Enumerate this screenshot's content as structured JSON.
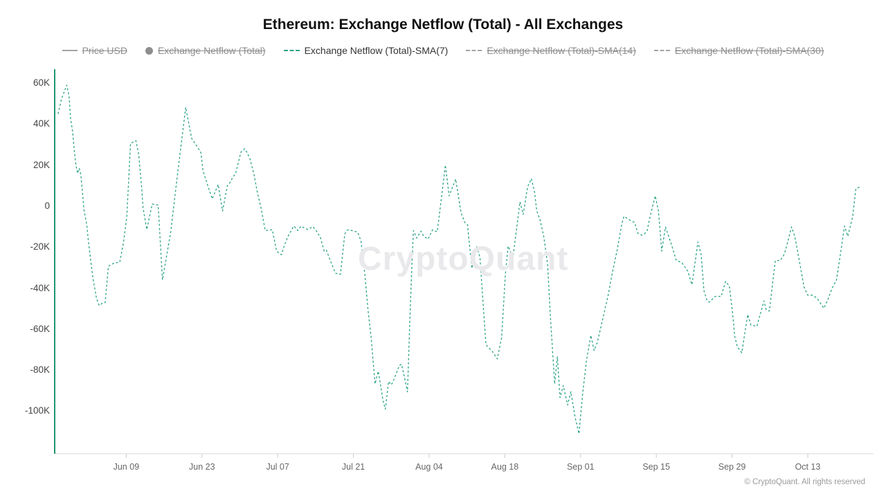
{
  "title": "Ethereum: Exchange Netflow (Total) - All Exchanges",
  "watermark": "CryptoQuant",
  "copyright": "© CryptoQuant. All rights reserved",
  "colors": {
    "accent_green": "#2BA286",
    "axis_green": "#219471",
    "legend_gray": "#8E8E8E",
    "legend_active": "#333333",
    "axis_line_gray": "#DADADA",
    "tick_gray": "#CCCCCC",
    "y_label_color": "#444444",
    "x_label_color": "#666666",
    "watermark_gray": "#E9E9EC",
    "title_color": "#111111"
  },
  "legend": {
    "items": [
      {
        "label": "Price USD",
        "icon": "line",
        "active": false
      },
      {
        "label": "Exchange Netflow (Total)",
        "icon": "circle",
        "active": false
      },
      {
        "label": "Exchange Netflow (Total)-SMA(7)",
        "icon": "dashed-line",
        "active": true
      },
      {
        "label": "Exchange Netflow (Total)-SMA(14)",
        "icon": "dashed-line",
        "active": false
      },
      {
        "label": "Exchange Netflow (Total)-SMA(30)",
        "icon": "dashed-line",
        "active": false
      }
    ]
  },
  "chart_data": {
    "type": "line",
    "title": "Ethereum: Exchange Netflow (Total) - All Exchanges",
    "series_name": "Exchange Netflow (Total)-SMA(7)",
    "line_style": "dashed",
    "unit": "thousand ETH (K)",
    "start_date": "May 27",
    "end_date": "Oct 22",
    "ylim": [
      -115,
      65
    ],
    "grid": false,
    "legend_position": "top",
    "hidden_series": [
      "Price USD",
      "Exchange Netflow (Total)",
      "Exchange Netflow (Total)-SMA(14)",
      "Exchange Netflow (Total)-SMA(30)"
    ],
    "y_ticks": [
      {
        "label": "60K",
        "value": 60
      },
      {
        "label": "40K",
        "value": 40
      },
      {
        "label": "20K",
        "value": 20
      },
      {
        "label": "0",
        "value": 0
      },
      {
        "label": "-20K",
        "value": -20
      },
      {
        "label": "-40K",
        "value": -40
      },
      {
        "label": "-60K",
        "value": -60
      },
      {
        "label": "-80K",
        "value": -80
      },
      {
        "label": "-100K",
        "value": -100
      }
    ],
    "x_ticks": [
      {
        "label": "Jun 09",
        "day": 13
      },
      {
        "label": "Jun 23",
        "day": 27
      },
      {
        "label": "Jul 07",
        "day": 41
      },
      {
        "label": "Jul 21",
        "day": 55
      },
      {
        "label": "Aug 04",
        "day": 69
      },
      {
        "label": "Aug 18",
        "day": 83
      },
      {
        "label": "Sep 01",
        "day": 97
      },
      {
        "label": "Sep 15",
        "day": 111
      },
      {
        "label": "Sep 29",
        "day": 125
      },
      {
        "label": "Oct 13",
        "day": 139
      }
    ],
    "points_day_value": [
      [
        0.4,
        45
      ],
      [
        1,
        52
      ],
      [
        2,
        59
      ],
      [
        2.4,
        54
      ],
      [
        2.7,
        43
      ],
      [
        3.1,
        36
      ],
      [
        3.4,
        27
      ],
      [
        3.7,
        20
      ],
      [
        4,
        16
      ],
      [
        4.3,
        18.5
      ],
      [
        4.6,
        15.5
      ],
      [
        4.9,
        7
      ],
      [
        5.2,
        -2
      ],
      [
        5.7,
        -9
      ],
      [
        6,
        -17
      ],
      [
        6.5,
        -28
      ],
      [
        6.9,
        -36
      ],
      [
        7.5,
        -45
      ],
      [
        8,
        -48.5
      ],
      [
        8.6,
        -47.3
      ],
      [
        9.1,
        -47
      ],
      [
        9.7,
        -29.3
      ],
      [
        10.8,
        -27.7
      ],
      [
        11.8,
        -27.4
      ],
      [
        12.5,
        -17.5
      ],
      [
        13.1,
        -5
      ],
      [
        13.8,
        30.6
      ],
      [
        14.8,
        31.9
      ],
      [
        15.3,
        25.2
      ],
      [
        15.9,
        7.8
      ],
      [
        16.1,
        -0.7
      ],
      [
        16.8,
        -11.4
      ],
      [
        17.8,
        1
      ],
      [
        18.9,
        0.5
      ],
      [
        19.7,
        -36
      ],
      [
        21.2,
        -13
      ],
      [
        22.5,
        16
      ],
      [
        24,
        48.2
      ],
      [
        24.6,
        39.8
      ],
      [
        25.1,
        33
      ],
      [
        26.1,
        29.1
      ],
      [
        26.8,
        26.1
      ],
      [
        27.2,
        17.3
      ],
      [
        27.8,
        12.2
      ],
      [
        28.9,
        3.5
      ],
      [
        30,
        10.6
      ],
      [
        30.8,
        -2.4
      ],
      [
        31.7,
        10
      ],
      [
        32.1,
        11.1
      ],
      [
        32.8,
        14.5
      ],
      [
        33.2,
        15.6
      ],
      [
        34.2,
        26.3
      ],
      [
        34.9,
        28
      ],
      [
        35.3,
        26.3
      ],
      [
        35.9,
        22.9
      ],
      [
        36.6,
        15.6
      ],
      [
        37.2,
        7.2
      ],
      [
        37.9,
        -0.7
      ],
      [
        38.7,
        -11.9
      ],
      [
        40,
        -11.5
      ],
      [
        40.8,
        -22
      ],
      [
        41.7,
        -23.7
      ],
      [
        42.3,
        -18.7
      ],
      [
        43,
        -14.2
      ],
      [
        44,
        -9.7
      ],
      [
        44.7,
        -11.9
      ],
      [
        45.3,
        -9.7
      ],
      [
        46,
        -10.8
      ],
      [
        46.6,
        -11.4
      ],
      [
        47.5,
        -10
      ],
      [
        48.1,
        -11.9
      ],
      [
        48.9,
        -15.3
      ],
      [
        49.6,
        -22
      ],
      [
        50,
        -21.5
      ],
      [
        50.9,
        -27.7
      ],
      [
        51.7,
        -32.7
      ],
      [
        52.6,
        -33.3
      ],
      [
        53.4,
        -13.6
      ],
      [
        53.9,
        -11.6
      ],
      [
        54.7,
        -11.9
      ],
      [
        55.8,
        -12.7
      ],
      [
        56.4,
        -17
      ],
      [
        57.1,
        -33
      ],
      [
        57.7,
        -50.7
      ],
      [
        58.3,
        -64.8
      ],
      [
        59,
        -86.7
      ],
      [
        59.6,
        -80.5
      ],
      [
        60.5,
        -95.1
      ],
      [
        60.9,
        -99
      ],
      [
        61.5,
        -85.5
      ],
      [
        62,
        -87.2
      ],
      [
        62.4,
        -85
      ],
      [
        63.5,
        -77.7
      ],
      [
        63.9,
        -77.1
      ],
      [
        64.4,
        -83
      ],
      [
        65,
        -90.6
      ],
      [
        65.4,
        -58.6
      ],
      [
        65.8,
        -29.3
      ],
      [
        66.1,
        -11.9
      ],
      [
        66.7,
        -15.6
      ],
      [
        67.5,
        -12.2
      ],
      [
        68,
        -14.7
      ],
      [
        68.8,
        -16.1
      ],
      [
        69.6,
        -11.6
      ],
      [
        70.5,
        -12.5
      ],
      [
        71.4,
        6.6
      ],
      [
        72,
        20
      ],
      [
        72.7,
        5
      ],
      [
        73.9,
        13.2
      ],
      [
        74.9,
        -3.3
      ],
      [
        75.6,
        -8
      ],
      [
        76.1,
        -9.1
      ],
      [
        76.9,
        -30.4
      ],
      [
        77.8,
        -19.8
      ],
      [
        78.4,
        -24.9
      ],
      [
        79.5,
        -67.6
      ],
      [
        80.7,
        -70.9
      ],
      [
        81.6,
        -74.5
      ],
      [
        82.4,
        -64.2
      ],
      [
        83.1,
        -33.3
      ],
      [
        83.6,
        -19.5
      ],
      [
        84.5,
        -24.9
      ],
      [
        85.2,
        -10.2
      ],
      [
        85.8,
        2.1
      ],
      [
        86.4,
        -4
      ],
      [
        87.2,
        9.4
      ],
      [
        87.9,
        13.4
      ],
      [
        88.5,
        6.8
      ],
      [
        88.9,
        -2.4
      ],
      [
        89.5,
        -6.6
      ],
      [
        90.2,
        -14.9
      ],
      [
        90.9,
        -28.2
      ],
      [
        91.4,
        -52.9
      ],
      [
        92.2,
        -86.7
      ],
      [
        92.7,
        -73.5
      ],
      [
        93.2,
        -93.4
      ],
      [
        93.8,
        -87.5
      ],
      [
        94.6,
        -97
      ],
      [
        95.2,
        -90.5
      ],
      [
        96,
        -103
      ],
      [
        96.7,
        -111
      ],
      [
        97.4,
        -91
      ],
      [
        98.1,
        -75
      ],
      [
        98.9,
        -63
      ],
      [
        99.5,
        -70.4
      ],
      [
        100.1,
        -66.4
      ],
      [
        101.1,
        -55
      ],
      [
        102.1,
        -43.4
      ],
      [
        102.9,
        -32.1
      ],
      [
        103.8,
        -20.9
      ],
      [
        104.6,
        -9.1
      ],
      [
        105,
        -5
      ],
      [
        106.1,
        -6.8
      ],
      [
        107,
        -8
      ],
      [
        107.6,
        -13.3
      ],
      [
        108.3,
        -14.2
      ],
      [
        108.8,
        -13.6
      ],
      [
        109.3,
        -11.9
      ],
      [
        109.9,
        -4.6
      ],
      [
        110.8,
        5
      ],
      [
        111.4,
        -2.4
      ],
      [
        112,
        -22
      ],
      [
        112.7,
        -10.2
      ],
      [
        113.8,
        -18.7
      ],
      [
        114.7,
        -26.5
      ],
      [
        115.7,
        -27.5
      ],
      [
        116.8,
        -31.6
      ],
      [
        117.6,
        -38.3
      ],
      [
        118.7,
        -17.5
      ],
      [
        119.3,
        -23.7
      ],
      [
        119.8,
        -41.1
      ],
      [
        120.4,
        -46.2
      ],
      [
        120.8,
        -46.8
      ],
      [
        121.9,
        -44
      ],
      [
        123,
        -44
      ],
      [
        123.8,
        -36.7
      ],
      [
        124.5,
        -38.9
      ],
      [
        125.1,
        -51.8
      ],
      [
        125.5,
        -63.6
      ],
      [
        126,
        -68.7
      ],
      [
        126.8,
        -71.5
      ],
      [
        127.9,
        -52.9
      ],
      [
        128.5,
        -58
      ],
      [
        129.6,
        -58.6
      ],
      [
        130.9,
        -46.2
      ],
      [
        131.3,
        -50.5
      ],
      [
        131.9,
        -51.2
      ],
      [
        133,
        -26.5
      ],
      [
        133.9,
        -26.5
      ],
      [
        134.5,
        -24.3
      ],
      [
        134.9,
        -21.5
      ],
      [
        136,
        -10.2
      ],
      [
        136.6,
        -14.7
      ],
      [
        137.7,
        -30.4
      ],
      [
        138.3,
        -39.4
      ],
      [
        139,
        -43.4
      ],
      [
        140,
        -43.4
      ],
      [
        140.9,
        -45.6
      ],
      [
        142,
        -49.8
      ],
      [
        142.8,
        -45.1
      ],
      [
        143.5,
        -40
      ],
      [
        144.3,
        -36.1
      ],
      [
        144.9,
        -26
      ],
      [
        145.8,
        -9.7
      ],
      [
        146.4,
        -14.7
      ],
      [
        147.3,
        -5.2
      ],
      [
        147.9,
        8.5
      ],
      [
        148.7,
        9.4
      ]
    ]
  }
}
